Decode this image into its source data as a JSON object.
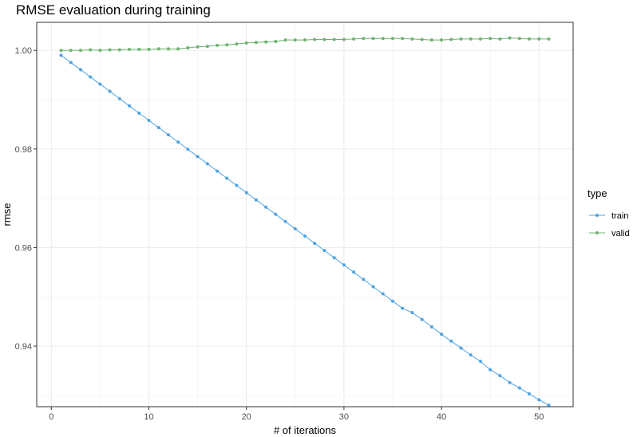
{
  "chart_data": {
    "type": "line",
    "title": "RMSE evaluation during training",
    "xlabel": "# of iterations",
    "ylabel": "rmse",
    "xlim": [
      -1.5,
      53.5
    ],
    "ylim": [
      0.9277,
      1.0057
    ],
    "x_ticks": [
      0,
      10,
      20,
      30,
      40,
      50
    ],
    "x_minor_ticks": [
      5,
      15,
      25,
      35,
      45
    ],
    "y_ticks": [
      0.94,
      0.96,
      0.98,
      1.0
    ],
    "y_tick_labels": [
      "0.94",
      "0.96",
      "0.98",
      "1.00"
    ],
    "y_minor_ticks": [
      0.93,
      0.95,
      0.97,
      0.99
    ],
    "grid": true,
    "legend": {
      "title": "type",
      "position": "right"
    },
    "colors": {
      "train": "#4fa3e0",
      "valid": "#6fb36f"
    },
    "x": [
      1,
      2,
      3,
      4,
      5,
      6,
      7,
      8,
      9,
      10,
      11,
      12,
      13,
      14,
      15,
      16,
      17,
      18,
      19,
      20,
      21,
      22,
      23,
      24,
      25,
      26,
      27,
      28,
      29,
      30,
      31,
      32,
      33,
      34,
      35,
      36,
      37,
      38,
      39,
      40,
      41,
      42,
      43,
      44,
      45,
      46,
      47,
      48,
      49,
      50,
      51
    ],
    "series": [
      {
        "name": "train",
        "values": [
          0.999,
          0.99754,
          0.9961,
          0.99462,
          0.99315,
          0.9917,
          0.9902,
          0.98874,
          0.98727,
          0.9858,
          0.98433,
          0.98286,
          0.9814,
          0.97993,
          0.97846,
          0.977,
          0.97553,
          0.97406,
          0.9726,
          0.97113,
          0.96966,
          0.9682,
          0.96673,
          0.96526,
          0.9638,
          0.96233,
          0.96086,
          0.9594,
          0.95793,
          0.95646,
          0.955,
          0.95353,
          0.95206,
          0.9506,
          0.94913,
          0.94766,
          0.9468,
          0.9454,
          0.9439,
          0.9424,
          0.941,
          0.9396,
          0.9382,
          0.9369,
          0.9352,
          0.934,
          0.9326,
          0.9315,
          0.9303,
          0.9291,
          0.928
        ]
      },
      {
        "name": "valid",
        "values": [
          1.0,
          1.00002,
          1.00002,
          1.00012,
          1.00002,
          1.00012,
          1.00012,
          1.00022,
          1.00022,
          1.00022,
          1.00032,
          1.00032,
          1.00032,
          1.00052,
          1.00072,
          1.00082,
          1.00102,
          1.00112,
          1.00132,
          1.00152,
          1.00162,
          1.00172,
          1.00182,
          1.00212,
          1.00212,
          1.00212,
          1.00222,
          1.00222,
          1.00222,
          1.00222,
          1.00232,
          1.00242,
          1.00242,
          1.00242,
          1.00242,
          1.00242,
          1.00232,
          1.00222,
          1.00212,
          1.00212,
          1.00222,
          1.00232,
          1.00232,
          1.00232,
          1.00242,
          1.00232,
          1.00252,
          1.00242,
          1.00232,
          1.00232,
          1.00232
        ]
      }
    ]
  }
}
